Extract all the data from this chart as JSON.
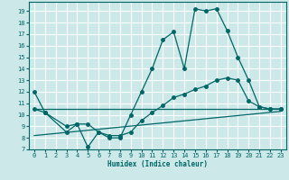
{
  "xlabel": "Humidex (Indice chaleur)",
  "bg_color": "#cce8e8",
  "grid_color": "#ffffff",
  "line_color": "#006666",
  "xlim": [
    -0.5,
    23.5
  ],
  "ylim": [
    7,
    19.8
  ],
  "yticks": [
    7,
    8,
    9,
    10,
    11,
    12,
    13,
    14,
    15,
    16,
    17,
    18,
    19
  ],
  "xticks": [
    0,
    1,
    2,
    3,
    4,
    5,
    6,
    7,
    8,
    9,
    10,
    11,
    12,
    13,
    14,
    15,
    16,
    17,
    18,
    19,
    20,
    21,
    22,
    23
  ],
  "line1_x": [
    0,
    1,
    3,
    4,
    5,
    6,
    7,
    8,
    9,
    10,
    11,
    12,
    13,
    14,
    15,
    16,
    17,
    18,
    19,
    20,
    21,
    22,
    23
  ],
  "line1_y": [
    12,
    10.2,
    8.5,
    9.2,
    7.2,
    8.5,
    8.0,
    8.0,
    10.0,
    12.0,
    14.0,
    16.5,
    17.2,
    14.0,
    19.2,
    19.0,
    19.2,
    17.3,
    15.0,
    13.0,
    10.7,
    10.5,
    10.5
  ],
  "line2_x": [
    0,
    1,
    3,
    4,
    5,
    6,
    7,
    8,
    9,
    10,
    11,
    12,
    13,
    14,
    15,
    16,
    17,
    18,
    19,
    20,
    21,
    22,
    23
  ],
  "line2_y": [
    10.5,
    10.2,
    9.0,
    9.2,
    9.2,
    8.5,
    8.2,
    8.2,
    8.5,
    9.5,
    10.2,
    10.8,
    11.5,
    11.8,
    12.2,
    12.5,
    13.0,
    13.2,
    13.0,
    11.2,
    10.7,
    10.5,
    10.5
  ],
  "line3_x": [
    0,
    23
  ],
  "line3_y": [
    8.2,
    10.3
  ],
  "line4_x": [
    0,
    23
  ],
  "line4_y": [
    10.5,
    10.5
  ]
}
